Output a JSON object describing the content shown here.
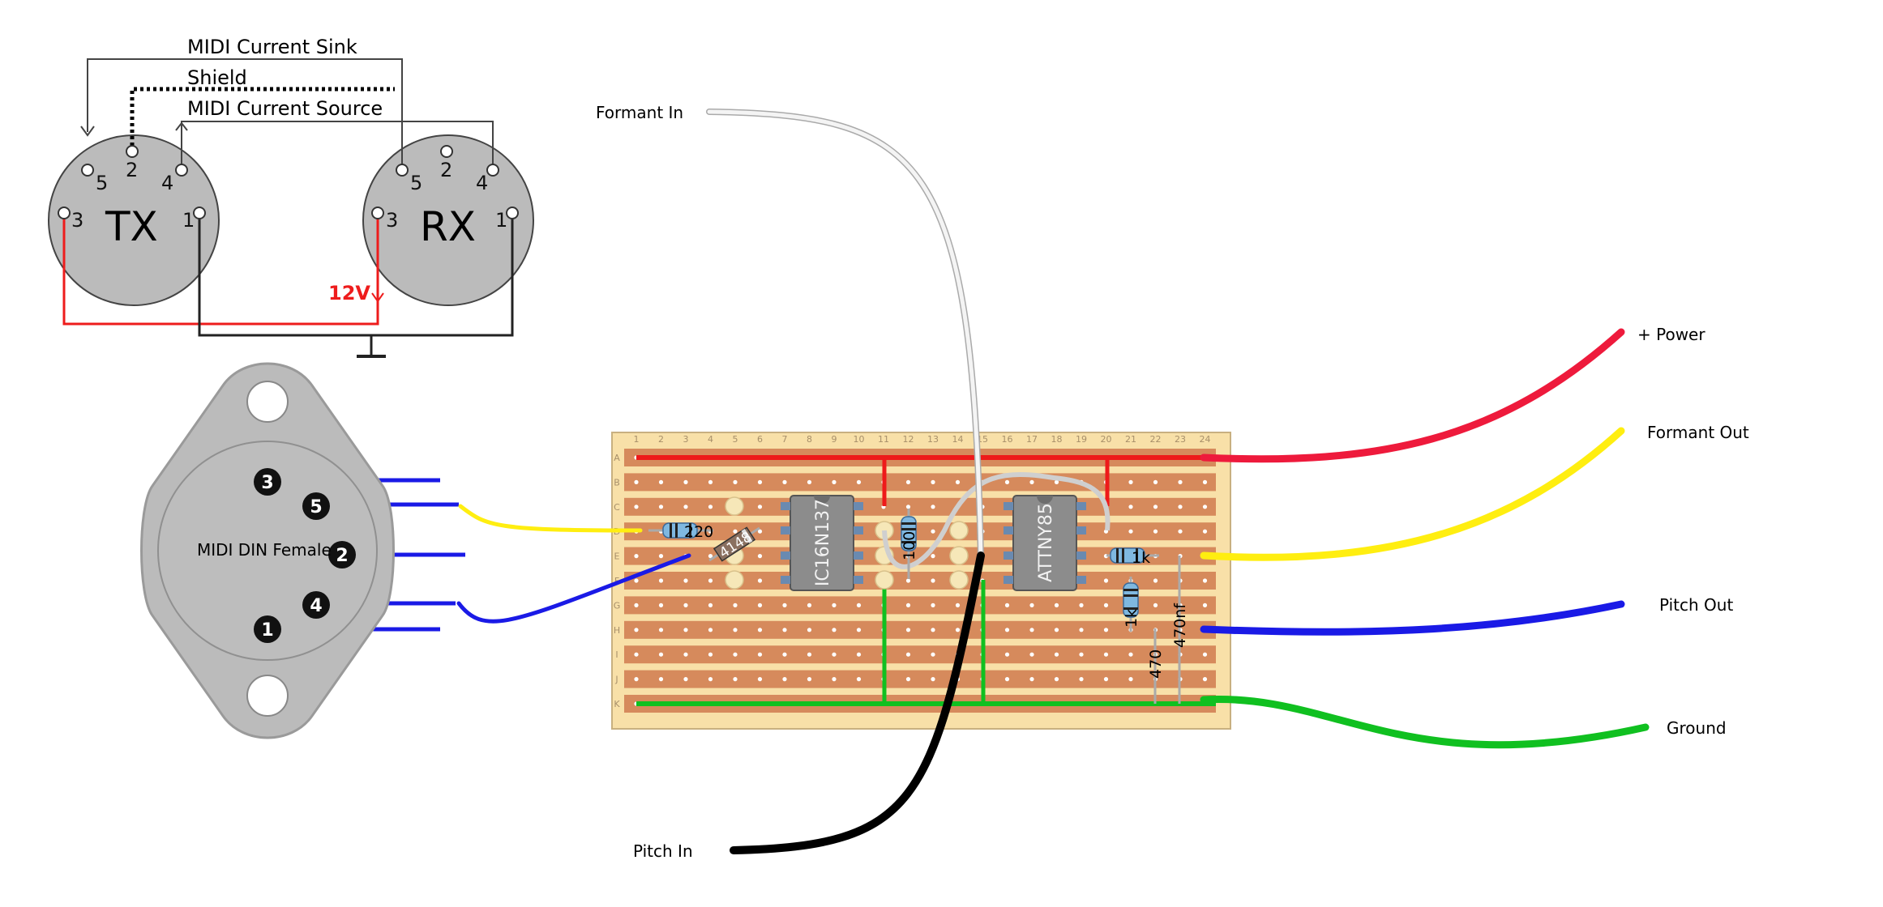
{
  "midi_schematic": {
    "sink_label": "MIDI Current Sink",
    "shield_label": "Shield",
    "source_label": "MIDI Current Source",
    "tx_label": "TX",
    "rx_label": "RX",
    "supply_label": "12V",
    "pins": [
      "5",
      "2",
      "4",
      "3",
      "1"
    ],
    "colors": {
      "supply": "#ee1c1c",
      "wire": "#444444",
      "connector": "#bbbbbb"
    }
  },
  "din_connector": {
    "label": "MIDI DIN Female",
    "pins": [
      "3",
      "5",
      "2",
      "4",
      "1"
    ]
  },
  "stripboard": {
    "columns": [
      "1",
      "2",
      "3",
      "4",
      "5",
      "6",
      "7",
      "8",
      "9",
      "10",
      "11",
      "12",
      "13",
      "14",
      "15",
      "16",
      "17",
      "18",
      "19",
      "20",
      "21",
      "22",
      "23",
      "24"
    ],
    "rows": [
      "A",
      "B",
      "C",
      "D",
      "E",
      "F",
      "G",
      "H",
      "I",
      "J",
      "K"
    ],
    "chips": [
      "IC16N137",
      "ATTNY85"
    ],
    "components": [
      "220",
      "4148",
      "100",
      "1k",
      "1k",
      "470",
      "470nf"
    ],
    "colors": {
      "board": "#f8e0a8",
      "strip": "#d68a5c",
      "ic": "#8c8c8c"
    }
  },
  "connections": {
    "formant_in": "Formant In",
    "pitch_in": "Pitch In",
    "power": "+ Power",
    "formant_out": "Formant Out",
    "pitch_out": "Pitch Out",
    "ground": "Ground",
    "colors": {
      "power": "#ee1a3c",
      "formant_out": "#ffee10",
      "pitch_out": "#1a1ae6",
      "ground": "#10c020",
      "pitch_in": "#000000",
      "formant_in": "#e8e8e8"
    }
  }
}
